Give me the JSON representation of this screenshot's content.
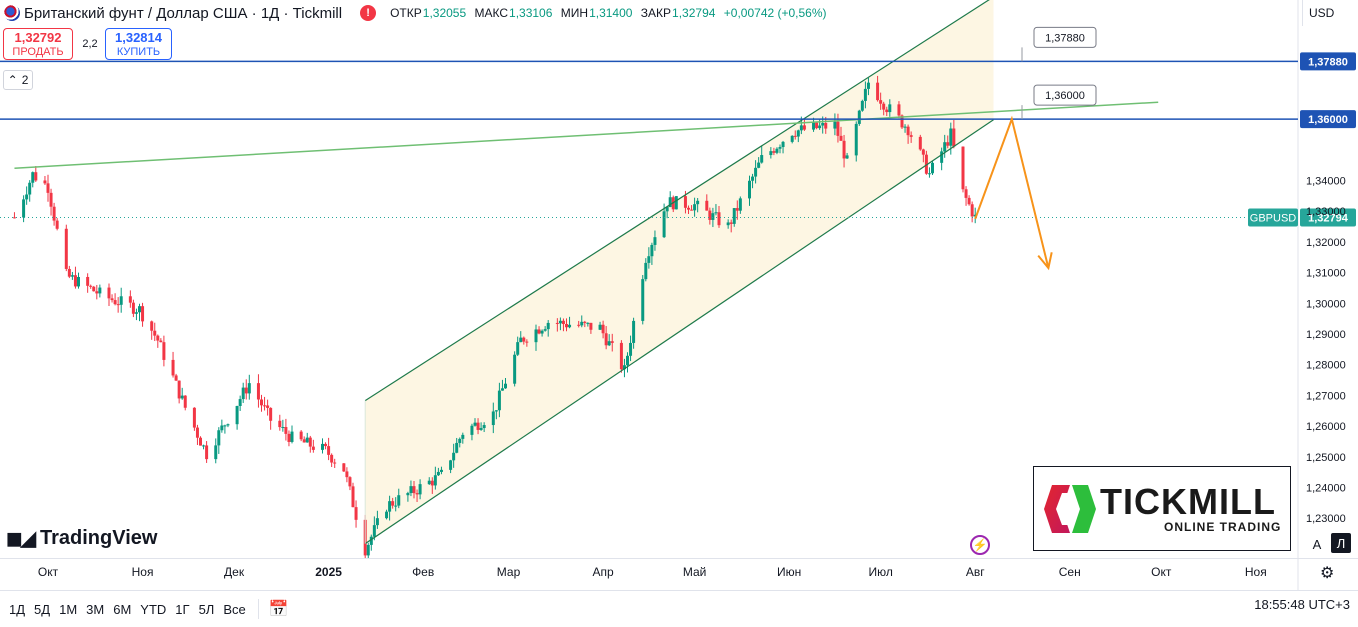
{
  "header": {
    "title": "Британский фунт / Доллар США · 1Д · Tickmill",
    "alert_icon": "alert-icon",
    "ohlc": [
      {
        "key": "ОТКР",
        "value": "1,32055"
      },
      {
        "key": "МАКС",
        "value": "1,33106"
      },
      {
        "key": "МИН",
        "value": "1,31400"
      },
      {
        "key": "ЗАКР",
        "value": "1,32794"
      },
      {
        "key": "",
        "value": "+0,00742 (+0,56%)"
      }
    ]
  },
  "trade": {
    "sell_price": "1,32792",
    "sell_label": "ПРОДАТЬ",
    "spread": "2,2",
    "buy_price": "1,32814",
    "buy_label": "КУПИТЬ"
  },
  "collapse": {
    "count": "2",
    "icon": "chevron-up-icon"
  },
  "currency": "USD",
  "brand": {
    "tradingview": "TradingView",
    "tickmill_name": "TICKMILL",
    "tickmill_tagline": "ONLINE TRADING"
  },
  "toggles": {
    "auto": "A",
    "log": "Л"
  },
  "bottom": {
    "timeframes": [
      "1Д",
      "5Д",
      "1М",
      "3М",
      "6М",
      "YTD",
      "1Г",
      "5Л",
      "Все"
    ],
    "clock": "18:55:48 UTC+3"
  },
  "colors": {
    "up": "#089981",
    "down": "#f23645",
    "hline": "#1e53b4",
    "trend": "#6fbf73",
    "channel": "#1e7a4b",
    "channel_fill": "#fdf6e3",
    "arrow": "#f7931a",
    "price_badge": "#26a69a"
  },
  "chart_data": {
    "type": "candlestick",
    "symbol": "GBPUSD",
    "last_price": "1,32794",
    "y_ticks": [
      "1,34000",
      "1,33000",
      "1,32000",
      "1,31000",
      "1,30000",
      "1,29000",
      "1,28000",
      "1,27000",
      "1,26000",
      "1,25000",
      "1,24000",
      "1,23000"
    ],
    "ylim": [
      1.2217,
      1.3955
    ],
    "x_labels": [
      "Окт",
      "Ноя",
      "Дек",
      "2025",
      "Фев",
      "Мар",
      "Апр",
      "Май",
      "Июн",
      "Июл",
      "Авг",
      "Сен",
      "Окт",
      "Ноя"
    ],
    "x_months": [
      "2024-10",
      "2024-11",
      "2024-12",
      "2025-01",
      "2025-02",
      "2025-03",
      "2025-04",
      "2025-05",
      "2025-06",
      "2025-07",
      "2025-08",
      "2025-09",
      "2025-10",
      "2025-11"
    ],
    "horizontal_levels": [
      {
        "value": 1.3788,
        "label": "1,37880",
        "callout": "1,37880"
      },
      {
        "value": 1.36,
        "label": "1,36000",
        "callout": "1,36000"
      }
    ],
    "trend_line": {
      "start": [
        "2024-09-20",
        1.344
      ],
      "end": [
        "2025-09-30",
        1.3655
      ]
    },
    "channel": {
      "upper": {
        "start": [
          "2025-01-13",
          1.2683
        ],
        "end": [
          "2025-08-07",
          1.3998
        ]
      },
      "lower": {
        "start": [
          "2025-01-13",
          1.2217
        ],
        "end": [
          "2025-08-07",
          1.3598
        ]
      }
    },
    "projection": [
      [
        "2025-08-01",
        1.3275
      ],
      [
        "2025-08-13",
        1.36
      ],
      [
        "2025-08-25",
        1.3115
      ]
    ],
    "close_path": [
      [
        "2024-09-20",
        1.328
      ],
      [
        "2024-09-26",
        1.342
      ],
      [
        "2024-10-01",
        1.338
      ],
      [
        "2024-10-07",
        1.309
      ],
      [
        "2024-10-20",
        1.302
      ],
      [
        "2024-10-31",
        1.298
      ],
      [
        "2024-11-06",
        1.288
      ],
      [
        "2024-11-15",
        1.266
      ],
      [
        "2024-11-22",
        1.251
      ],
      [
        "2024-12-06",
        1.274
      ],
      [
        "2024-12-13",
        1.262
      ],
      [
        "2024-12-20",
        1.256
      ],
      [
        "2024-12-31",
        1.252
      ],
      [
        "2025-01-06",
        1.246
      ],
      [
        "2025-01-13",
        1.22
      ],
      [
        "2025-01-20",
        1.234
      ],
      [
        "2025-01-31",
        1.24
      ],
      [
        "2025-02-07",
        1.244
      ],
      [
        "2025-02-14",
        1.258
      ],
      [
        "2025-02-24",
        1.264
      ],
      [
        "2025-03-05",
        1.288
      ],
      [
        "2025-03-14",
        1.294
      ],
      [
        "2025-03-31",
        1.292
      ],
      [
        "2025-04-08",
        1.278
      ],
      [
        "2025-04-15",
        1.315
      ],
      [
        "2025-04-22",
        1.333
      ],
      [
        "2025-05-01",
        1.332
      ],
      [
        "2025-05-12",
        1.325
      ],
      [
        "2025-05-23",
        1.347
      ],
      [
        "2025-06-02",
        1.356
      ],
      [
        "2025-06-16",
        1.358
      ],
      [
        "2025-06-20",
        1.346
      ],
      [
        "2025-06-27",
        1.372
      ],
      [
        "2025-07-03",
        1.364
      ],
      [
        "2025-07-10",
        1.357
      ],
      [
        "2025-07-17",
        1.342
      ],
      [
        "2025-07-24",
        1.355
      ],
      [
        "2025-07-28",
        1.336
      ],
      [
        "2025-08-01",
        1.3279
      ]
    ]
  }
}
